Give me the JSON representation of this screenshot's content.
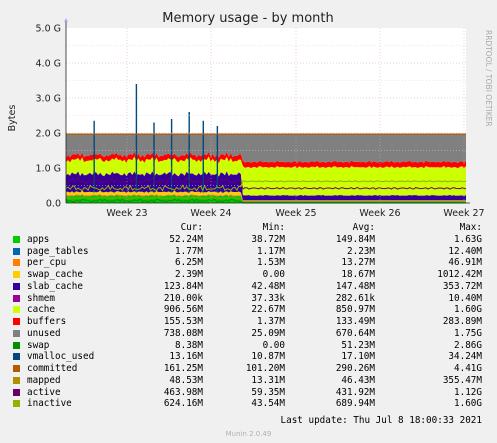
{
  "chart_data": {
    "type": "area",
    "title": "Memory usage - by month",
    "ylabel": "Bytes",
    "side_label": "RRDTOOL / TOBI OETIKER",
    "ylim": [
      0,
      5
    ],
    "y_unit": "G",
    "y_ticks": [
      "0.0",
      "1.0 G",
      "2.0 G",
      "3.0 G",
      "4.0 G",
      "5.0 G"
    ],
    "x_ticks": [
      "Week 23",
      "Week 24",
      "Week 25",
      "Week 26",
      "Week 27"
    ],
    "columns": [
      "Cur:",
      "Min:",
      "Avg:",
      "Max:"
    ],
    "series": [
      {
        "name": "apps",
        "color": "#00cc00",
        "cur": "52.24M",
        "min": "38.72M",
        "avg": "149.84M",
        "max": "1.63G"
      },
      {
        "name": "page_tables",
        "color": "#0066b3",
        "cur": "1.77M",
        "min": "1.17M",
        "avg": "2.23M",
        "max": "12.40M"
      },
      {
        "name": "per_cpu",
        "color": "#ff8000",
        "cur": "6.25M",
        "min": "1.53M",
        "avg": "13.27M",
        "max": "46.91M"
      },
      {
        "name": "swap_cache",
        "color": "#ffcc00",
        "cur": "2.39M",
        "min": "0.00",
        "avg": "18.67M",
        "max": "1012.42M"
      },
      {
        "name": "slab_cache",
        "color": "#330099",
        "cur": "123.84M",
        "min": "42.48M",
        "avg": "147.48M",
        "max": "353.72M"
      },
      {
        "name": "shmem",
        "color": "#990099",
        "cur": "210.00k",
        "min": "37.33k",
        "avg": "282.61k",
        "max": "10.40M"
      },
      {
        "name": "cache",
        "color": "#ccff00",
        "cur": "906.56M",
        "min": "22.67M",
        "avg": "850.97M",
        "max": "1.60G"
      },
      {
        "name": "buffers",
        "color": "#ff0000",
        "cur": "155.53M",
        "min": "1.37M",
        "avg": "133.49M",
        "max": "283.89M"
      },
      {
        "name": "unused",
        "color": "#808080",
        "cur": "738.08M",
        "min": "25.09M",
        "avg": "670.64M",
        "max": "1.75G"
      },
      {
        "name": "swap",
        "color": "#008f00",
        "cur": "8.38M",
        "min": "0.00",
        "avg": "51.23M",
        "max": "2.86G"
      },
      {
        "name": "vmalloc_used",
        "color": "#00487d",
        "cur": "13.16M",
        "min": "10.87M",
        "avg": "17.10M",
        "max": "34.24M"
      },
      {
        "name": "committed",
        "color": "#b35a00",
        "cur": "161.25M",
        "min": "101.20M",
        "avg": "290.26M",
        "max": "4.41G"
      },
      {
        "name": "mapped",
        "color": "#b38f00",
        "cur": "48.53M",
        "min": "13.31M",
        "avg": "46.43M",
        "max": "355.47M"
      },
      {
        "name": "active",
        "color": "#6b006b",
        "cur": "463.98M",
        "min": "59.35M",
        "avg": "431.92M",
        "max": "1.12G"
      },
      {
        "name": "inactive",
        "color": "#8fb300",
        "cur": "624.16M",
        "min": "43.54M",
        "avg": "689.94M",
        "max": "1.60G"
      }
    ],
    "grid": true,
    "legend_position": "bottom"
  },
  "footer": {
    "last_update": "Last update:  Thu Jul  8 18:00:33 2021",
    "generator": "Munin 2.0.49"
  }
}
